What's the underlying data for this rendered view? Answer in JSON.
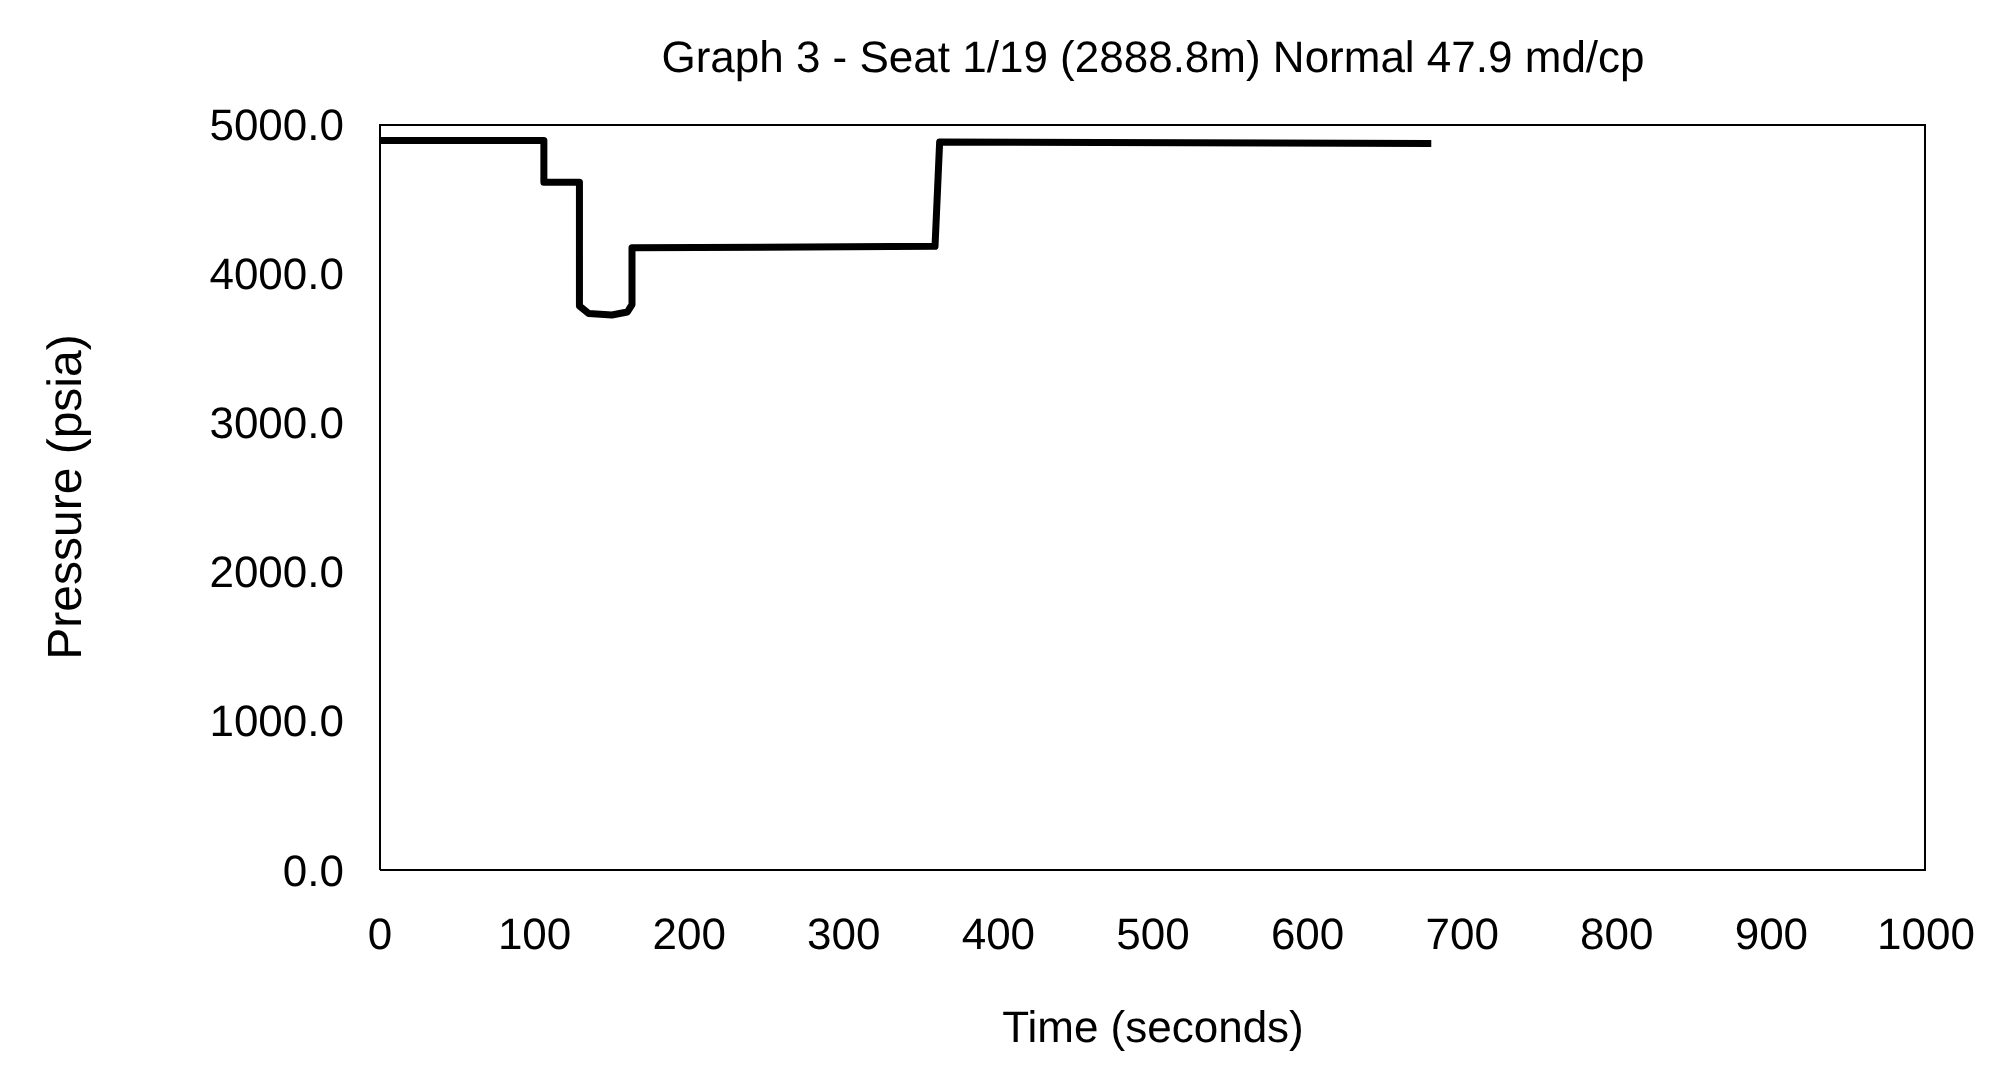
{
  "chart_data": {
    "type": "line",
    "title": "Graph 3 - Seat 1/19 (2888.8m) Normal 47.9 md/cp",
    "xlabel": "Time (seconds)",
    "ylabel": "Pressure (psia)",
    "x": [
      0,
      106,
      106,
      129,
      129,
      135,
      150,
      160,
      163,
      163,
      359,
      362,
      680
    ],
    "series": [
      {
        "color": "#000000",
        "values": [
          4890,
          4890,
          4610,
          4610,
          3780,
          3730,
          3720,
          3740,
          3790,
          4170,
          4180,
          4880,
          4870
        ]
      }
    ],
    "xlim": [
      0,
      1000
    ],
    "xticks": [
      0,
      100,
      200,
      300,
      400,
      500,
      600,
      700,
      800,
      900,
      1000
    ],
    "ylim": [
      0,
      5000
    ],
    "yticks": [
      {
        "value": 0,
        "label": "0.0"
      },
      {
        "value": 1000,
        "label": "1000.0"
      },
      {
        "value": 2000,
        "label": "2000.0"
      },
      {
        "value": 3000,
        "label": "3000.0"
      },
      {
        "value": 4000,
        "label": "4000.0"
      },
      {
        "value": 5000,
        "label": "5000.0"
      }
    ],
    "grid": false,
    "legend": false,
    "marker": "none",
    "line_style": "solid"
  }
}
